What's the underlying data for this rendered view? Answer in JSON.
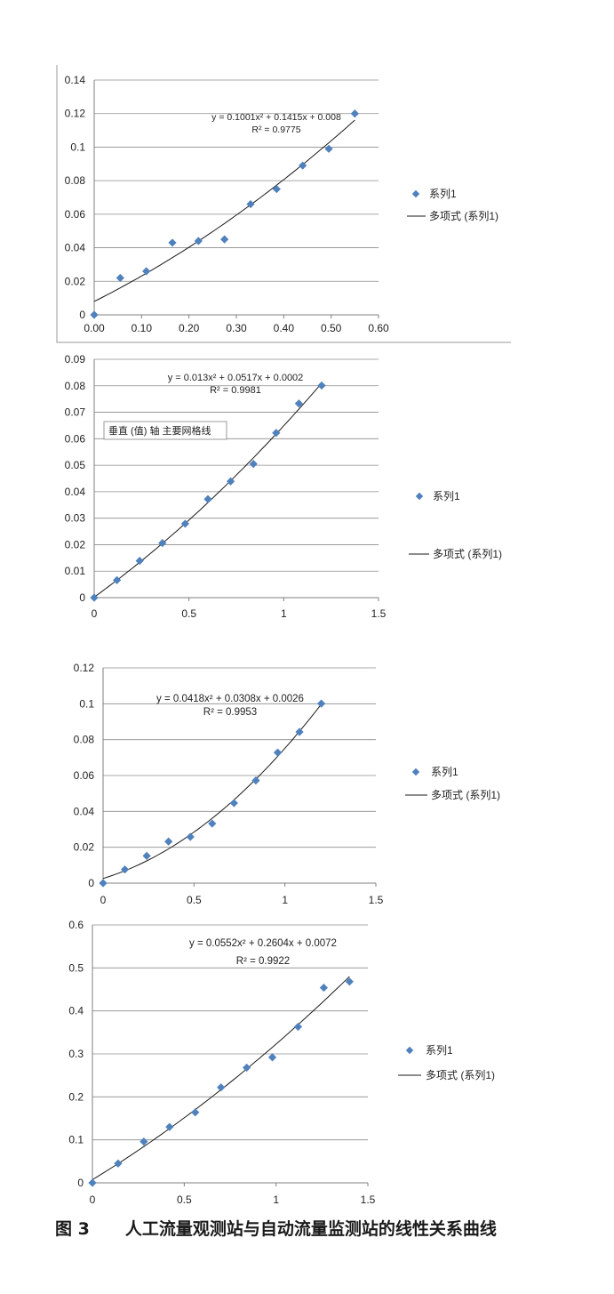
{
  "figure_caption": {
    "number": "图 3",
    "text": "人工流量观测站与自动流量监测站的线性关系曲线"
  },
  "colors": {
    "marker": "#4f81bd",
    "grid": "#8c8c8c",
    "axis": "#7f7f7f",
    "trend": "#1a1a1a"
  },
  "tooltip_text": "垂直 (值) 轴 主要网格线",
  "chart_data": [
    {
      "type": "scatter",
      "x": [
        0,
        0.055,
        0.11,
        0.165,
        0.22,
        0.275,
        0.33,
        0.385,
        0.44,
        0.495,
        0.55
      ],
      "y": [
        0,
        0.022,
        0.026,
        0.043,
        0.044,
        0.045,
        0.066,
        0.075,
        0.089,
        0.099,
        0.12
      ],
      "xlim": [
        0,
        0.6
      ],
      "ylim": [
        0,
        0.14
      ],
      "xticks": [
        "0.00",
        "0.10",
        "0.20",
        "0.30",
        "0.40",
        "0.50",
        "0.60"
      ],
      "yticks": [
        "0",
        "0.02",
        "0.04",
        "0.06",
        "0.08",
        "0.1",
        "0.12",
        "0.14"
      ],
      "trendline": {
        "type": "polynomial",
        "coefficients": [
          0.1001,
          0.1415,
          0.008
        ],
        "equation": "y = 0.1001x² + 0.1415x + 0.008",
        "r2": "R² = 0.9775"
      },
      "legend": {
        "position": "right",
        "series_label": "系列1",
        "trend_label": "多项式 (系列1)"
      },
      "grid": true
    },
    {
      "type": "scatter",
      "x": [
        0,
        0.12,
        0.24,
        0.36,
        0.48,
        0.6,
        0.72,
        0.84,
        0.96,
        1.08,
        1.2
      ],
      "y": [
        0,
        0.0066,
        0.0139,
        0.0206,
        0.0279,
        0.0372,
        0.0439,
        0.0505,
        0.0622,
        0.0733,
        0.0801
      ],
      "xlim": [
        0,
        1.5
      ],
      "ylim": [
        0,
        0.09
      ],
      "xticks": [
        "0",
        "0.5",
        "1",
        "1.5"
      ],
      "yticks": [
        "0",
        "0.01",
        "0.02",
        "0.03",
        "0.04",
        "0.05",
        "0.06",
        "0.07",
        "0.08",
        "0.09"
      ],
      "trendline": {
        "type": "polynomial",
        "coefficients": [
          0.013,
          0.0517,
          0.0002
        ],
        "equation": "y = 0.013x² + 0.0517x + 0.0002",
        "r2": "R² = 0.9981"
      },
      "legend": {
        "position": "right",
        "series_label": "系列1",
        "trend_label": "多项式 (系列1)"
      },
      "grid": true
    },
    {
      "type": "scatter",
      "x": [
        0,
        0.12,
        0.24,
        0.36,
        0.48,
        0.6,
        0.72,
        0.84,
        0.96,
        1.08,
        1.2
      ],
      "y": [
        0,
        0.0076,
        0.0152,
        0.0232,
        0.0258,
        0.0332,
        0.0446,
        0.0572,
        0.0728,
        0.0843,
        0.1001
      ],
      "xlim": [
        0,
        1.5
      ],
      "ylim": [
        0,
        0.12
      ],
      "xticks": [
        "0",
        "0.5",
        "1",
        "1.5"
      ],
      "yticks": [
        "0",
        "0.02",
        "0.04",
        "0.06",
        "0.08",
        "0.1",
        "0.12"
      ],
      "trendline": {
        "type": "polynomial",
        "coefficients": [
          0.0418,
          0.0308,
          0.0026
        ],
        "equation": "y = 0.0418x² + 0.0308x + 0.0026",
        "r2": "R² = 0.9953"
      },
      "legend": {
        "position": "right",
        "series_label": "系列1",
        "trend_label": "多项式 (系列1)"
      },
      "grid": true
    },
    {
      "type": "scatter",
      "x": [
        0,
        0.14,
        0.28,
        0.42,
        0.56,
        0.7,
        0.84,
        0.98,
        1.12,
        1.26,
        1.4
      ],
      "y": [
        0,
        0.045,
        0.096,
        0.13,
        0.164,
        0.222,
        0.268,
        0.292,
        0.363,
        0.454,
        0.468
      ],
      "xlim": [
        0,
        1.5
      ],
      "ylim": [
        0,
        0.6
      ],
      "xticks": [
        "0",
        "0.5",
        "1",
        "1.5"
      ],
      "yticks": [
        "0",
        "0.1",
        "0.2",
        "0.3",
        "0.4",
        "0.5",
        "0.6"
      ],
      "trendline": {
        "type": "polynomial",
        "coefficients": [
          0.0552,
          0.2604,
          0.0072
        ],
        "equation": "y = 0.0552x² + 0.2604x + 0.0072",
        "r2": "R² = 0.9922"
      },
      "legend": {
        "position": "right",
        "series_label": "系列1",
        "trend_label": "多项式 (系列1)"
      },
      "grid": true
    }
  ]
}
